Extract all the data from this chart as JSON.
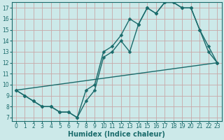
{
  "xlabel": "Humidex (Indice chaleur)",
  "bg_color": "#cce9e9",
  "grid_color": "#d4a0a0",
  "line_color": "#1a6b6b",
  "xlim": [
    -0.5,
    23.5
  ],
  "ylim": [
    6.7,
    17.5
  ],
  "xticks": [
    0,
    1,
    2,
    3,
    4,
    5,
    6,
    7,
    8,
    9,
    10,
    11,
    12,
    13,
    14,
    15,
    16,
    17,
    18,
    19,
    20,
    21,
    22,
    23
  ],
  "yticks": [
    7,
    8,
    9,
    10,
    11,
    12,
    13,
    14,
    15,
    16,
    17
  ],
  "line1_x": [
    0,
    1,
    2,
    3,
    4,
    5,
    6,
    7,
    8,
    9,
    10,
    11,
    12,
    13,
    14,
    15,
    16,
    17,
    18,
    19,
    20,
    21,
    22,
    23
  ],
  "line1_y": [
    9.5,
    9.0,
    8.5,
    8.0,
    8.0,
    7.5,
    7.5,
    7.0,
    9.5,
    10.0,
    13.0,
    13.5,
    14.5,
    16.0,
    15.5,
    17.0,
    16.5,
    17.5,
    17.5,
    17.0,
    17.0,
    15.0,
    13.0,
    12.0
  ],
  "line2_x": [
    0,
    1,
    2,
    3,
    4,
    5,
    6,
    7,
    8,
    9,
    10,
    11,
    12,
    13,
    14,
    15,
    16,
    17,
    18,
    19,
    20,
    21,
    22,
    23
  ],
  "line2_y": [
    9.5,
    9.0,
    8.5,
    8.0,
    8.0,
    7.5,
    7.5,
    7.0,
    8.5,
    9.5,
    12.5,
    13.0,
    14.0,
    13.0,
    15.5,
    17.0,
    16.5,
    17.5,
    17.5,
    17.0,
    17.0,
    15.0,
    13.5,
    12.0
  ],
  "line3_x": [
    0,
    23
  ],
  "line3_y": [
    9.5,
    12.0
  ],
  "marker_size": 2.5,
  "line_width": 1.0,
  "xlabel_fontsize": 7,
  "tick_fontsize": 5.5
}
